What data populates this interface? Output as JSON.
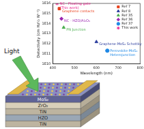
{
  "chart_data": {
    "type": "scatter",
    "x_label": "Wavelength (nm)",
    "y_label": "Detectivity (cm Hz½ W⁻¹)",
    "xlim": [
      400,
      800
    ],
    "xticks": [
      400,
      500,
      600,
      700,
      800
    ],
    "ylim": [
      10000000000,
      10000000000000000
    ],
    "yticks": [
      {
        "value": 10000000000,
        "label": "1E10"
      },
      {
        "value": 100000000000,
        "label": "1E11"
      },
      {
        "value": 1000000000000,
        "label": "1E12"
      },
      {
        "value": 10000000000000,
        "label": "1E13"
      },
      {
        "value": 100000000000000,
        "label": "1E14"
      },
      {
        "value": 1000000000000000,
        "label": "1E15"
      },
      {
        "value": 10000000000000000,
        "label": "1E16"
      }
    ],
    "log": "y",
    "grid": false,
    "legend": "upper right",
    "series": [
      {
        "name": "Ref 7",
        "color": "#e8401c",
        "marker": "rect",
        "x": [
          430
        ],
        "values": [
          3000000000000000
        ],
        "annotation": [
          "Graphene contacts"
        ]
      },
      {
        "name": "Ref 8",
        "color": "#2c3e9e",
        "marker": "triangle",
        "x": [
          600
        ],
        "values": [
          1500000000000
        ],
        "annotation": [
          "Graphene-MoS₂ Schottky"
        ]
      },
      {
        "name": "Ref 35",
        "color": "#4caf50",
        "marker": "triangle",
        "x": [
          450
        ],
        "values": [
          40000000000000
        ],
        "annotation": [
          "PN Junction"
        ]
      },
      {
        "name": "Ref 36",
        "color": "#9c27b0",
        "marker": "rectRot",
        "x": [
          440
        ],
        "values": [
          300000000000000
        ],
        "annotation": [
          "NC - HZO/Al₂O₃"
        ]
      },
      {
        "name": "Ref 37",
        "color": "#1e88e5",
        "marker": "circle",
        "x": [
          650
        ],
        "values": [
          200000000000
        ],
        "annotation": [
          "Perovskite-MoS₂",
          "Heterojunction"
        ]
      },
      {
        "name": "This work",
        "color": "#e91e8c",
        "marker": "star",
        "x": [
          420
        ],
        "values": [
          10000000000000000
        ],
        "annotation": [
          "NC - Floating gate",
          "(This work)"
        ]
      }
    ]
  },
  "diagram": {
    "light_label": "Light",
    "layers": [
      "MoS₂",
      "ZrO₂",
      "TiN",
      "HZO",
      "TiN"
    ]
  }
}
